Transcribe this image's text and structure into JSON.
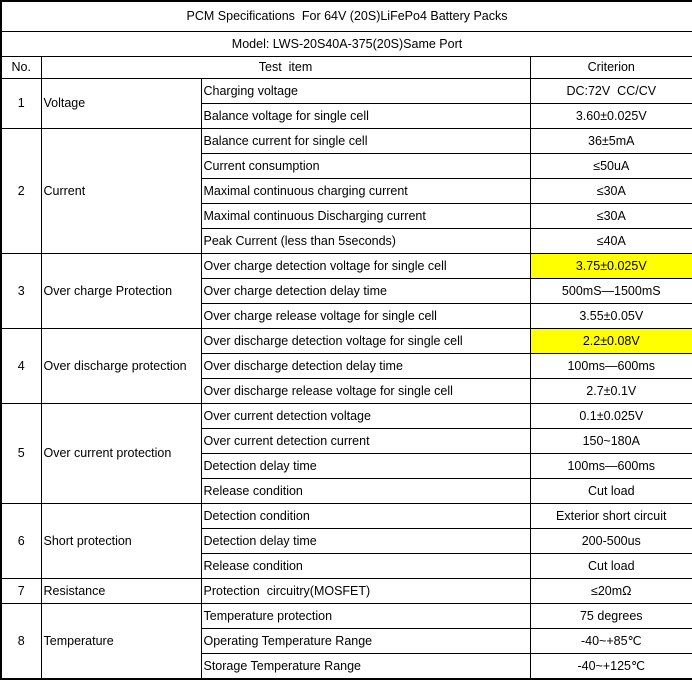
{
  "title": "PCM Specifications  For 64V (20S)LiFePo4 Battery Packs",
  "model": "Model: LWS-20S40A-375(20S)Same Port",
  "columns": {
    "no": "No.",
    "test_item": "Test  item",
    "criterion": "Criterion"
  },
  "highlight_color": "#ffff00",
  "border_color": "#000000",
  "groups": [
    {
      "no": "1",
      "name": "Voltage",
      "rows": [
        {
          "test": "Charging voltage",
          "criterion": "DC:72V  CC/CV",
          "highlight": false
        },
        {
          "test": "Balance voltage for single cell",
          "criterion": "3.60±0.025V",
          "highlight": false
        }
      ]
    },
    {
      "no": "2",
      "name": "Current",
      "rows": [
        {
          "test": "Balance current for single cell",
          "criterion": "36±5mA",
          "highlight": false
        },
        {
          "test": "Current consumption",
          "criterion": "≤50uA",
          "highlight": false
        },
        {
          "test": "Maximal continuous charging current",
          "criterion": "≤30A",
          "highlight": false
        },
        {
          "test": "Maximal continuous Discharging current",
          "criterion": "≤30A",
          "highlight": false
        },
        {
          "test": "Peak Current (less than 5seconds)",
          "criterion": "≤40A",
          "highlight": false
        }
      ]
    },
    {
      "no": "3",
      "name": "Over charge Protection",
      "rows": [
        {
          "test": "Over charge detection voltage for single cell",
          "criterion": "3.75±0.025V",
          "highlight": true
        },
        {
          "test": "Over charge detection delay time",
          "criterion": "500mS—1500mS",
          "highlight": false
        },
        {
          "test": "Over charge release voltage for single cell",
          "criterion": "3.55±0.05V",
          "highlight": false
        }
      ]
    },
    {
      "no": "4",
      "name": "Over discharge protection",
      "rows": [
        {
          "test": "Over discharge detection voltage for single cell",
          "criterion": "2.2±0.08V",
          "highlight": true
        },
        {
          "test": "Over discharge detection delay time",
          "criterion": "100ms—600ms",
          "highlight": false
        },
        {
          "test": "Over discharge release voltage for single cell",
          "criterion": "2.7±0.1V",
          "highlight": false
        }
      ]
    },
    {
      "no": "5",
      "name": "Over current protection",
      "rows": [
        {
          "test": "Over current detection voltage",
          "criterion": "0.1±0.025V",
          "highlight": false
        },
        {
          "test": "Over current detection current",
          "criterion": "150~180A",
          "highlight": false
        },
        {
          "test": "Detection delay time",
          "criterion": "100ms—600ms",
          "highlight": false
        },
        {
          "test": "Release condition",
          "criterion": "Cut load",
          "highlight": false
        }
      ]
    },
    {
      "no": "6",
      "name": "Short protection",
      "rows": [
        {
          "test": "Detection condition",
          "criterion": "Exterior short circuit",
          "highlight": false
        },
        {
          "test": "Detection delay time",
          "criterion": "200-500us",
          "highlight": false
        },
        {
          "test": "Release condition",
          "criterion": "Cut load",
          "highlight": false
        }
      ]
    },
    {
      "no": "7",
      "name": "Resistance",
      "rows": [
        {
          "test": "Protection  circuitry(MOSFET)",
          "criterion": "≤20mΩ",
          "highlight": false
        }
      ]
    },
    {
      "no": "8",
      "name": "Temperature",
      "rows": [
        {
          "test": "Temperature protection",
          "criterion": "75 degrees",
          "highlight": false
        },
        {
          "test": "Operating Temperature Range",
          "criterion": "-40~+85℃",
          "highlight": false
        },
        {
          "test": "Storage Temperature Range",
          "criterion": "-40~+125℃",
          "highlight": false
        }
      ]
    }
  ]
}
